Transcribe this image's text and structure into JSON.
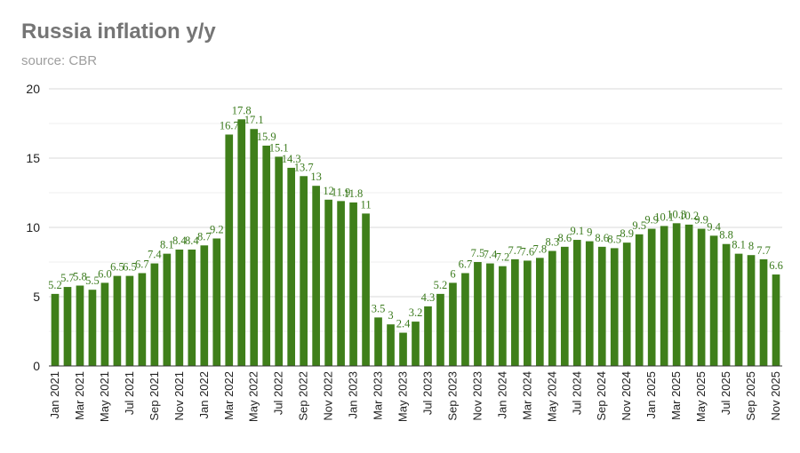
{
  "chart_data": {
    "type": "bar",
    "title": "Russia inflation y/y",
    "subtitle": "source: CBR",
    "xlabel": "",
    "ylabel": "",
    "ylim": [
      0,
      20
    ],
    "yticks": [
      0,
      5,
      10,
      15,
      20
    ],
    "grid": true,
    "bar_color": "#3f7f1a",
    "label_color": "#3a7a1c",
    "categories": [
      "Jan 2021",
      "Feb 2021",
      "Mar 2021",
      "Apr 2021",
      "May 2021",
      "Jun 2021",
      "Jul 2021",
      "Aug 2021",
      "Sep 2021",
      "Oct 2021",
      "Nov 2021",
      "Dec 2021",
      "Jan 2022",
      "Feb 2022",
      "Mar 2022",
      "Apr 2022",
      "May 2022",
      "Jun 2022",
      "Jul 2022",
      "Aug 2022",
      "Sep 2022",
      "Oct 2022",
      "Nov 2022",
      "Dec 2022",
      "Jan 2023",
      "Feb 2023",
      "Mar 2023",
      "Apr 2023",
      "May 2023",
      "Jun 2023",
      "Jul 2023",
      "Aug 2023",
      "Sep 2023",
      "Oct 2023",
      "Nov 2023",
      "Dec 2023",
      "Jan 2024",
      "Feb 2024",
      "Mar 2024",
      "Apr 2024",
      "May 2024",
      "Jun 2024",
      "Jul 2024",
      "Aug 2024",
      "Sep 2024",
      "Oct 2024",
      "Nov 2024",
      "Dec 2024",
      "Jan 2025",
      "Feb 2025",
      "Mar 2025",
      "Apr 2025",
      "May 2025",
      "Jun 2025",
      "Jul 2025",
      "Aug 2025",
      "Sep 2025",
      "Oct 2025",
      "Nov 2025"
    ],
    "xtick_labels": [
      "Jan 2021",
      "Mar 2021",
      "May 2021",
      "Jul 2021",
      "Sep 2021",
      "Nov 2021",
      "Jan 2022",
      "Mar 2022",
      "May 2022",
      "Jul 2022",
      "Sep 2022",
      "Nov 2022",
      "Jan 2023",
      "Mar 2023",
      "May 2023",
      "Jul 2023",
      "Sep 2023",
      "Nov 2023",
      "Jan 2024",
      "Mar 2024",
      "May 2024",
      "Jul 2024",
      "Sep 2024",
      "Nov 2024",
      "Jan 2025",
      "Mar 2025",
      "May 2025",
      "Jul 2025",
      "Sep 2025",
      "Nov 2025"
    ],
    "values": [
      5.2,
      5.7,
      5.8,
      5.5,
      6.0,
      6.5,
      6.5,
      6.7,
      7.4,
      8.1,
      8.4,
      8.4,
      8.7,
      9.2,
      16.7,
      17.8,
      17.1,
      15.9,
      15.1,
      14.3,
      13.7,
      13.0,
      12.0,
      11.9,
      11.8,
      11.0,
      3.5,
      3.0,
      2.4,
      3.2,
      4.3,
      5.2,
      6.0,
      6.7,
      7.5,
      7.4,
      7.2,
      7.7,
      7.6,
      7.8,
      8.3,
      8.6,
      9.1,
      9.0,
      8.6,
      8.5,
      8.9,
      9.5,
      9.9,
      10.1,
      10.3,
      10.2,
      9.9,
      9.4,
      8.8,
      8.1,
      8.0,
      7.7,
      6.6
    ],
    "data_labels": [
      "5.2",
      "5.7",
      "5.8",
      "5.5",
      "6.0",
      "6.5",
      "6.5",
      "6.7",
      "7.4",
      "8.1",
      "8.4",
      "8.4",
      "8.7",
      "9.2",
      "16.7",
      "17.8",
      "17.1",
      "15.9",
      "15.1",
      "14.3",
      "13.7",
      "13",
      "12",
      "11.9",
      "11.8",
      "11",
      "3.5",
      "3",
      "2.4",
      "3.2",
      "4.3",
      "5.2",
      "6",
      "6.7",
      "7.5",
      "7.4",
      "7.2",
      "7.7",
      "7.6",
      "7.8",
      "8.3",
      "8.6",
      "9.1",
      "9",
      "8.6",
      "8.5",
      "8.9",
      "9.5",
      "9.9",
      "10.1",
      "10.3",
      "10.2",
      "9.9",
      "9.4",
      "8.8",
      "8.1",
      "8",
      "7.7",
      "6.6"
    ]
  }
}
